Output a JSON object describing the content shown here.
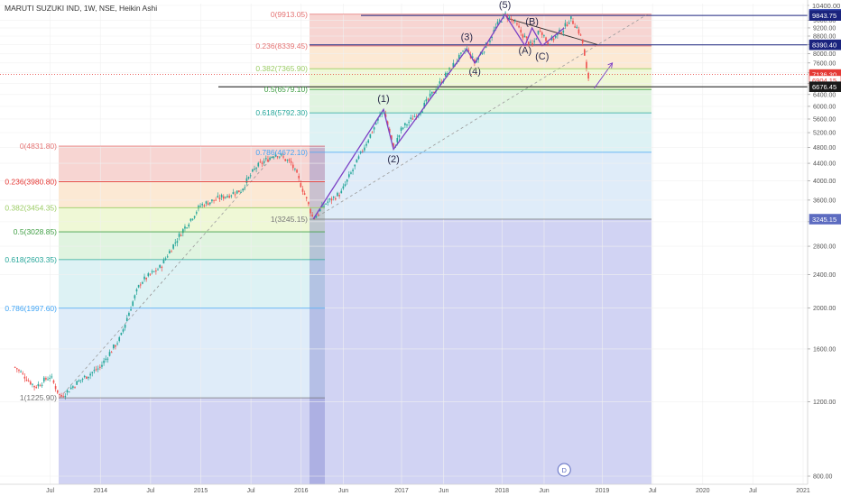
{
  "header": {
    "title": "MARUTI SUZUKI IND, 1W, NSE, Heikin Ashi"
  },
  "chart_data": {
    "type": "candlestick",
    "symbol": "MARUTI SUZUKI IND",
    "interval": "1W",
    "exchange": "NSE",
    "style": "Heikin Ashi",
    "ylim": [
      800,
      10400
    ],
    "y_scale": "log",
    "y_ticks": [
      10400,
      9600,
      9200,
      8800,
      8400,
      8000,
      7600,
      7200,
      6800,
      6400,
      6000,
      5600,
      5200,
      4800,
      4400,
      4000,
      3600,
      3200,
      2800,
      2400,
      2000,
      1600,
      1200,
      800
    ],
    "x_ticks": [
      "Jul",
      "2014",
      "Jul",
      "2015",
      "Jul",
      "2016",
      "Jun",
      "2017",
      "Jun",
      "2018",
      "Jun",
      "2019",
      "Jul",
      "2020",
      "Jul",
      "2021"
    ],
    "x_tick_times": [
      2013.5,
      2014.0,
      2014.5,
      2015.0,
      2015.5,
      2016.0,
      2016.42,
      2017.0,
      2017.42,
      2018.0,
      2018.42,
      2019.0,
      2019.5,
      2020.0,
      2020.5,
      2021.0
    ],
    "price_path": [
      [
        2013.15,
        1450
      ],
      [
        2013.35,
        1300
      ],
      [
        2013.5,
        1380
      ],
      [
        2013.6,
        1230
      ],
      [
        2013.8,
        1350
      ],
      [
        2014.0,
        1450
      ],
      [
        2014.2,
        1700
      ],
      [
        2014.4,
        2300
      ],
      [
        2014.6,
        2500
      ],
      [
        2014.8,
        3000
      ],
      [
        2015.0,
        3500
      ],
      [
        2015.2,
        3650
      ],
      [
        2015.4,
        3800
      ],
      [
        2015.55,
        4300
      ],
      [
        2015.75,
        4650
      ],
      [
        2015.9,
        4400
      ],
      [
        2016.0,
        3900
      ],
      [
        2016.12,
        3245
      ],
      [
        2016.25,
        3550
      ],
      [
        2016.4,
        3750
      ],
      [
        2016.55,
        4400
      ],
      [
        2016.7,
        5200
      ],
      [
        2016.82,
        5900
      ],
      [
        2016.92,
        4750
      ],
      [
        2017.0,
        5300
      ],
      [
        2017.2,
        5900
      ],
      [
        2017.4,
        6900
      ],
      [
        2017.55,
        7700
      ],
      [
        2017.65,
        8200
      ],
      [
        2017.73,
        7600
      ],
      [
        2017.85,
        8400
      ],
      [
        2017.96,
        9400
      ],
      [
        2018.03,
        9913
      ],
      [
        2018.12,
        9500
      ],
      [
        2018.2,
        8900
      ],
      [
        2018.3,
        8300
      ],
      [
        2018.38,
        9200
      ],
      [
        2018.45,
        8500
      ],
      [
        2018.52,
        8700
      ],
      [
        2018.62,
        9200
      ],
      [
        2018.68,
        9700
      ],
      [
        2018.75,
        9200
      ],
      [
        2018.8,
        8600
      ],
      [
        2018.84,
        7300
      ],
      [
        2018.87,
        6904
      ]
    ],
    "current_price": 6904.15,
    "fib_retracements": [
      {
        "name": "upper",
        "levels": [
          {
            "ratio": "0",
            "price": 9913.05,
            "label": "0(9913.05)",
            "color": "#e57373"
          },
          {
            "ratio": "0.236",
            "price": 8339.45,
            "label": "0.236(8339.45)",
            "color": "#e57373"
          },
          {
            "ratio": "0.382",
            "price": 7365.9,
            "label": "0.382(7365.90)",
            "color": "#9ccc65"
          },
          {
            "ratio": "0.5",
            "price": 6579.1,
            "label": "0.5(6579.10)",
            "color": "#43a047"
          },
          {
            "ratio": "0.618",
            "price": 5792.3,
            "label": "0.618(5792.30)",
            "color": "#26a69a"
          },
          {
            "ratio": "0.786",
            "price": 4672.1,
            "label": "0.786(4672.10)",
            "color": "#42a5f5"
          },
          {
            "ratio": "1",
            "price": 3245.15,
            "label": "1(3245.15)",
            "color": "#757575"
          }
        ]
      },
      {
        "name": "lower",
        "levels": [
          {
            "ratio": "0",
            "price": 4831.8,
            "label": "0(4831.80)",
            "color": "#e57373"
          },
          {
            "ratio": "0.236",
            "price": 3980.8,
            "label": "0.236(3980.80)",
            "color": "#e53935"
          },
          {
            "ratio": "0.382",
            "price": 3454.35,
            "label": "0.382(3454.35)",
            "color": "#9ccc65"
          },
          {
            "ratio": "0.5",
            "price": 3028.85,
            "label": "0.5(3028.85)",
            "color": "#43a047"
          },
          {
            "ratio": "0.618",
            "price": 2603.35,
            "label": "0.618(2603.35)",
            "color": "#26a69a"
          },
          {
            "ratio": "0.786",
            "price": 1997.6,
            "label": "0.786(1997.60)",
            "color": "#42a5f5"
          },
          {
            "ratio": "1",
            "price": 1225.9,
            "label": "1(1225.90)",
            "color": "#757575"
          }
        ]
      }
    ],
    "wave_labels": [
      {
        "text": "(1)",
        "t": 2016.82,
        "price": 6150
      },
      {
        "text": "(2)",
        "t": 2016.92,
        "price": 4420
      },
      {
        "text": "(3)",
        "t": 2017.65,
        "price": 8600
      },
      {
        "text": "(4)",
        "t": 2017.73,
        "price": 7150
      },
      {
        "text": "(5)",
        "t": 2018.03,
        "price": 10250
      },
      {
        "text": "(A)",
        "t": 2018.23,
        "price": 8000
      },
      {
        "text": "(B)",
        "t": 2018.3,
        "price": 9350
      },
      {
        "text": "(C)",
        "t": 2018.4,
        "price": 7750
      }
    ],
    "price_tags": [
      {
        "text": "10400.00",
        "price": 10400,
        "bg": "#ffffff",
        "fg": "#555555"
      },
      {
        "text": "9913.05",
        "price": 9913.05,
        "bg": "#3f51b5",
        "fg": "#ffffff"
      },
      {
        "text": "9843.75",
        "price": 9843.75,
        "bg": "#1a237e",
        "fg": "#ffffff"
      },
      {
        "text": "8390.40",
        "price": 8390.4,
        "bg": "#1a237e",
        "fg": "#ffffff"
      },
      {
        "text": "7136.30",
        "price": 7136.3,
        "bg": "#e53935",
        "fg": "#ffffff"
      },
      {
        "text": "6904.15",
        "price": 6904.15,
        "bg": "#ffffff",
        "fg": "#e53935",
        "border": "#e53935"
      },
      {
        "text": "6676.45",
        "price": 6676.45,
        "bg": "#1a1a1a",
        "fg": "#ffffff"
      },
      {
        "text": "3245.15",
        "price": 3245.15,
        "bg": "#5c6bc0",
        "fg": "#ffffff"
      }
    ],
    "horizontal_lines": [
      {
        "price": 9843.75,
        "color": "#1a237e"
      },
      {
        "price": 8390.4,
        "color": "#1a237e"
      },
      {
        "price": 6676.45,
        "color": "#111111"
      }
    ],
    "dividend_marker": "D",
    "colors": {
      "up": "#26a69a",
      "down": "#ef5350",
      "wave": "#7b3fc4",
      "trendline": "#999999"
    }
  }
}
